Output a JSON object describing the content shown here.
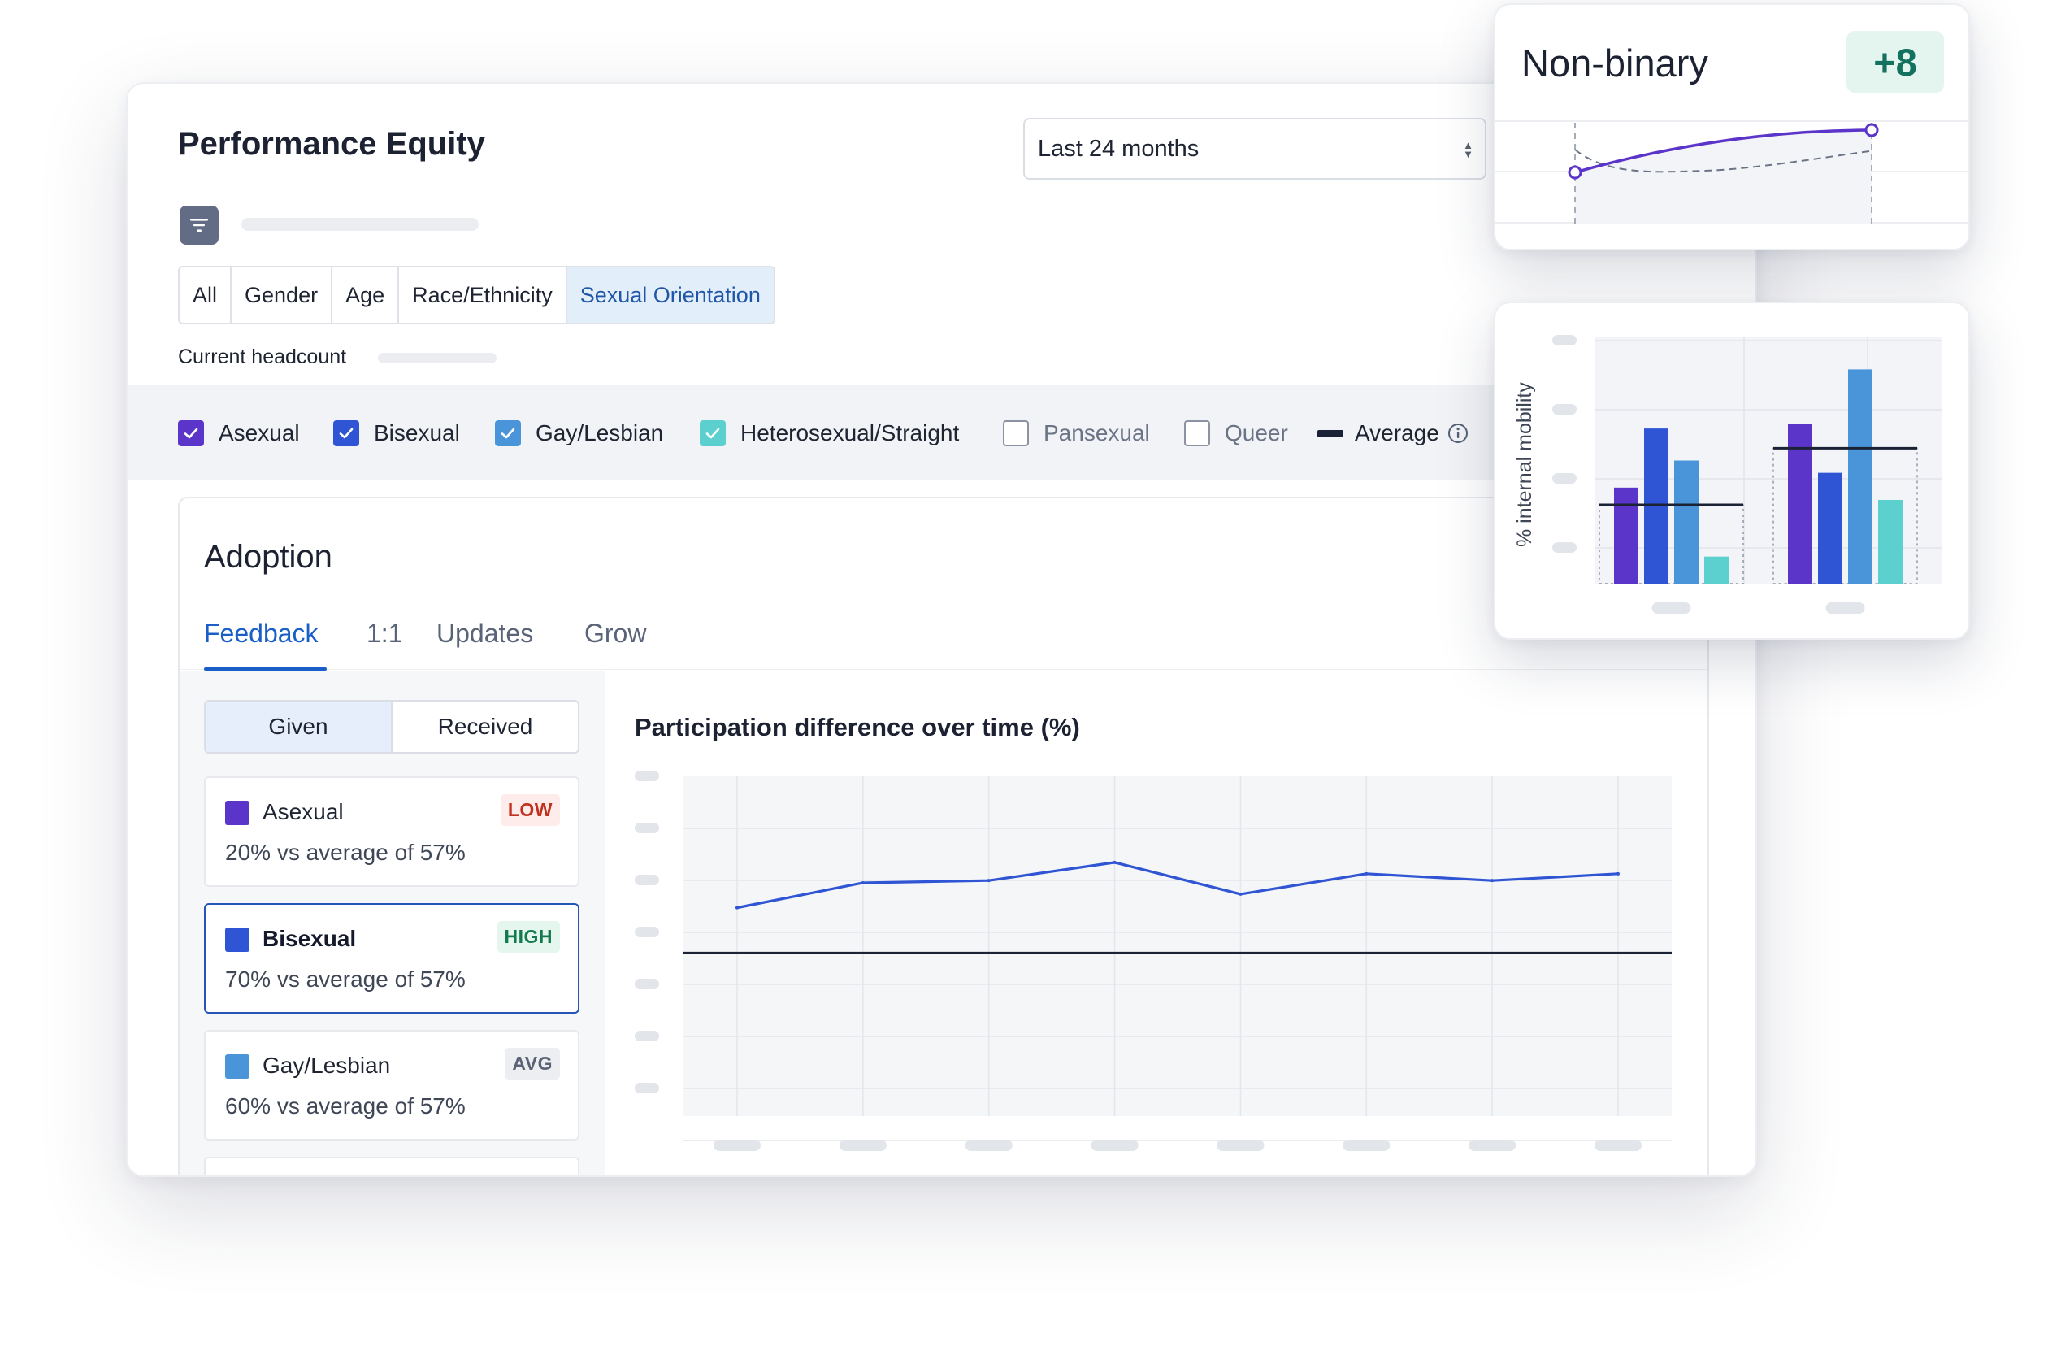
{
  "header": {
    "title": "Performance Equity",
    "date_range": "Last 24 months"
  },
  "dimension_tabs": [
    {
      "label": "All",
      "active": false
    },
    {
      "label": "Gender",
      "active": false
    },
    {
      "label": "Age",
      "active": false
    },
    {
      "label": "Race/Ethnicity",
      "active": false
    },
    {
      "label": "Sexual Orientation",
      "active": true
    }
  ],
  "headcount": {
    "label": "Current headcount"
  },
  "legend": {
    "items": [
      {
        "label": "Asexual",
        "checked": true,
        "color": "#5b34c9"
      },
      {
        "label": "Bisexual",
        "checked": true,
        "color": "#2f55d4"
      },
      {
        "label": "Gay/Lesbian",
        "checked": true,
        "color": "#4a95d9"
      },
      {
        "label": "Heterosexual/Straight",
        "checked": true,
        "color": "#5ccfcf"
      },
      {
        "label": "Pansexual",
        "checked": false,
        "color": "#8b93a2"
      },
      {
        "label": "Queer",
        "checked": false,
        "color": "#8b93a2"
      }
    ],
    "average_label": "Average",
    "average_color": "#1b2236",
    "info_icon": "info-circle-icon"
  },
  "adoption": {
    "title": "Adoption",
    "tabs": [
      {
        "label": "Feedback",
        "active": true
      },
      {
        "label": "1:1",
        "active": false
      },
      {
        "label": "Updates",
        "active": false
      },
      {
        "label": "Grow",
        "active": false
      }
    ],
    "toggle": {
      "given": "Given",
      "received": "Received",
      "active": "Given"
    },
    "groups": [
      {
        "name": "Asexual",
        "detail": "20% vs average of 57%",
        "badge": "LOW",
        "color": "#5b34c9",
        "selected": false
      },
      {
        "name": "Bisexual",
        "detail": "70% vs average of 57%",
        "badge": "HIGH",
        "color": "#2f55d4",
        "selected": true
      },
      {
        "name": "Gay/Lesbian",
        "detail": "60% vs average of 57%",
        "badge": "AVG",
        "color": "#4a95d9",
        "selected": false
      }
    ]
  },
  "chart_data": [
    {
      "type": "line",
      "title": "Participation difference over time (%)",
      "x": [
        1,
        2,
        3,
        4,
        5,
        6,
        7,
        8
      ],
      "series": [
        {
          "values": [
            62,
            73,
            74,
            82,
            68,
            77,
            74,
            77
          ],
          "color": "#2f55d4"
        }
      ],
      "average": 42,
      "ylim": [
        -30,
        120
      ],
      "grid": true
    },
    {
      "type": "line",
      "title": "Non-binary",
      "delta": "+8",
      "x": [
        0,
        1
      ],
      "series": [
        {
          "values": [
            40,
            80
          ],
          "color": "#5b34c9"
        },
        {
          "values": [
            60,
            68
          ],
          "color": "#6b7487",
          "style": "dashed"
        }
      ],
      "ylim": [
        0,
        100
      ]
    },
    {
      "type": "bar",
      "ylabel": "% internal mobility",
      "categories": [
        "",
        ""
      ],
      "series": [
        {
          "name": "Asexual",
          "values": [
            39,
            65
          ],
          "color": "#5b34c9"
        },
        {
          "name": "Bisexual",
          "values": [
            63,
            45
          ],
          "color": "#2f55d4"
        },
        {
          "name": "Gay/Lesbian",
          "values": [
            50,
            87
          ],
          "color": "#4a95d9"
        },
        {
          "name": "Heterosexual/Straight",
          "values": [
            11,
            34
          ],
          "color": "#5ccfcf"
        }
      ],
      "averages": [
        32,
        55
      ],
      "ylim": [
        0,
        100
      ]
    }
  ]
}
